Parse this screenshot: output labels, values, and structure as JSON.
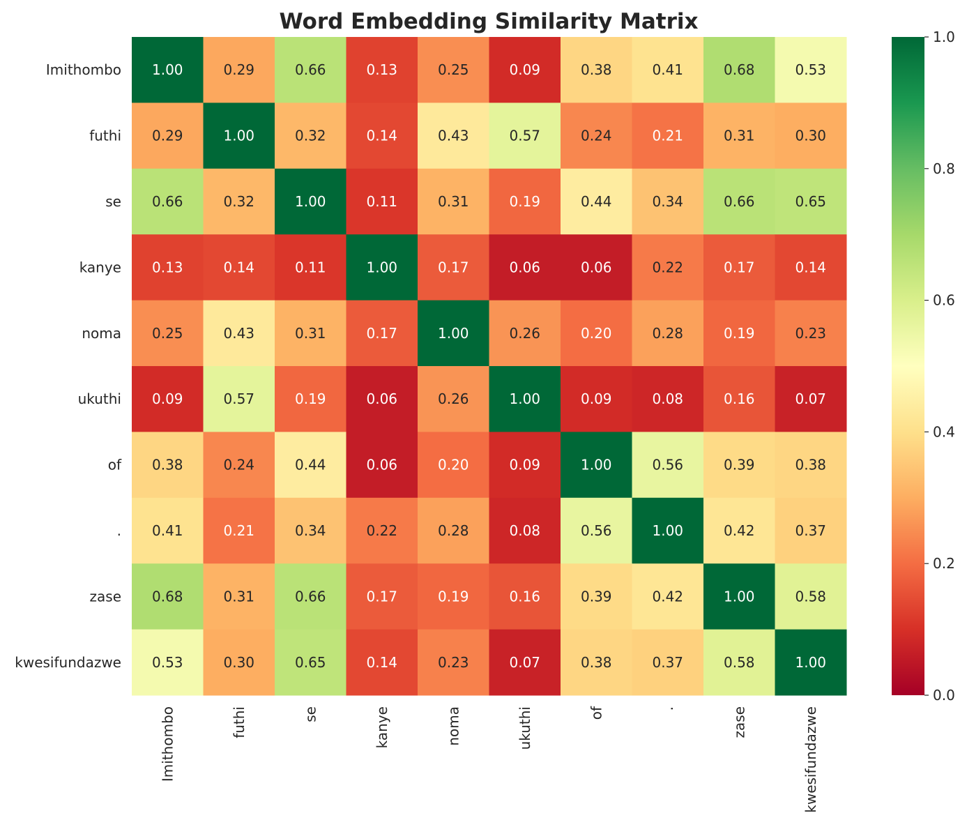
{
  "chart_data": {
    "type": "heatmap",
    "title": "Word Embedding Similarity Matrix",
    "xlabel": "",
    "ylabel": "",
    "rows": [
      "Imithombo",
      "futhi",
      "se",
      "kanye",
      "noma",
      "ukuthi",
      "of",
      ".",
      "zase",
      "kwesifundazwe"
    ],
    "columns": [
      "Imithombo",
      "futhi",
      "se",
      "kanye",
      "noma",
      "ukuthi",
      "of",
      ".",
      "zase",
      "kwesifundazwe"
    ],
    "values": [
      [
        1.0,
        0.29,
        0.66,
        0.13,
        0.25,
        0.09,
        0.38,
        0.41,
        0.68,
        0.53
      ],
      [
        0.29,
        1.0,
        0.32,
        0.14,
        0.43,
        0.57,
        0.24,
        0.21,
        0.31,
        0.3
      ],
      [
        0.66,
        0.32,
        1.0,
        0.11,
        0.31,
        0.19,
        0.44,
        0.34,
        0.66,
        0.65
      ],
      [
        0.13,
        0.14,
        0.11,
        1.0,
        0.17,
        0.06,
        0.06,
        0.22,
        0.17,
        0.14
      ],
      [
        0.25,
        0.43,
        0.31,
        0.17,
        1.0,
        0.26,
        0.2,
        0.28,
        0.19,
        0.23
      ],
      [
        0.09,
        0.57,
        0.19,
        0.06,
        0.26,
        1.0,
        0.09,
        0.08,
        0.16,
        0.07
      ],
      [
        0.38,
        0.24,
        0.44,
        0.06,
        0.2,
        0.09,
        1.0,
        0.56,
        0.39,
        0.38
      ],
      [
        0.41,
        0.21,
        0.34,
        0.22,
        0.28,
        0.08,
        0.56,
        1.0,
        0.42,
        0.37
      ],
      [
        0.68,
        0.31,
        0.66,
        0.17,
        0.19,
        0.16,
        0.39,
        0.42,
        1.0,
        0.58
      ],
      [
        0.53,
        0.3,
        0.65,
        0.14,
        0.23,
        0.07,
        0.38,
        0.37,
        0.58,
        1.0
      ]
    ],
    "value_format": "0.00",
    "colormap": "RdYlGn",
    "color_range": [
      0.0,
      1.0
    ],
    "colorbar_ticks": [
      "0.0",
      "0.2",
      "0.4",
      "0.6",
      "0.8",
      "1.0"
    ],
    "grid": false
  }
}
